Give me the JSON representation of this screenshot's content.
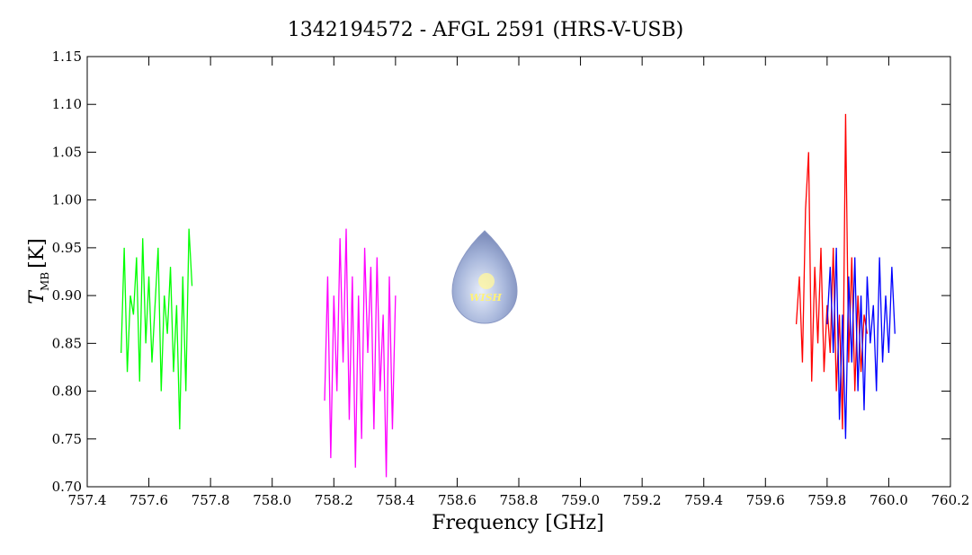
{
  "chart_data": {
    "type": "line",
    "title": "1342194572 - AFGL 2591 (HRS-V-USB)",
    "x_label": "Frequency [GHz]",
    "y_label": {
      "symbol": "T",
      "subscript": "MB",
      "unit": "[K]"
    },
    "logo": "WISH",
    "xlim": [
      757.4,
      760.2
    ],
    "ylim": [
      0.7,
      1.15
    ],
    "xticks": [
      757.4,
      757.6,
      757.8,
      {
        "value": 758.0,
        "label": "758.0"
      },
      758.2,
      758.4,
      758.6,
      758.8,
      {
        "value": 759.0,
        "label": "759.0"
      },
      759.2,
      759.4,
      759.6,
      759.8,
      {
        "value": 760.0,
        "label": "760.0"
      },
      760.2
    ],
    "yticks": [
      {
        "value": 0.7,
        "label": "0.70"
      },
      0.75,
      {
        "value": 0.8,
        "label": "0.80"
      },
      0.85,
      {
        "value": 0.9,
        "label": "0.90"
      },
      0.95,
      {
        "value": 1.0,
        "label": "1.00"
      },
      1.05,
      {
        "value": 1.1,
        "label": "1.10"
      },
      1.15
    ],
    "series": [
      {
        "color": "#00ff00",
        "x": [
          757.51,
          757.52,
          757.53,
          757.54,
          757.55,
          757.56,
          757.57,
          757.58,
          757.59,
          757.6,
          757.61,
          757.62,
          757.63,
          757.64,
          757.65,
          757.66,
          757.67,
          757.68,
          757.69,
          757.7,
          757.71,
          757.72,
          757.73,
          757.74
        ],
        "values": [
          0.84,
          0.95,
          0.82,
          0.9,
          0.88,
          0.94,
          0.81,
          0.96,
          0.85,
          0.92,
          0.83,
          0.89,
          0.95,
          0.8,
          0.9,
          0.86,
          0.93,
          0.82,
          0.89,
          0.76,
          0.92,
          0.8,
          0.97,
          0.91
        ]
      },
      {
        "color": "#ff00ff",
        "x": [
          758.17,
          758.18,
          758.19,
          758.2,
          758.21,
          758.22,
          758.23,
          758.24,
          758.25,
          758.26,
          758.27,
          758.28,
          758.29,
          758.3,
          758.31,
          758.32,
          758.33,
          758.34,
          758.35,
          758.36,
          758.37,
          758.38,
          758.39,
          758.4
        ],
        "values": [
          0.79,
          0.92,
          0.73,
          0.9,
          0.8,
          0.96,
          0.83,
          0.97,
          0.77,
          0.92,
          0.72,
          0.9,
          0.75,
          0.95,
          0.84,
          0.93,
          0.76,
          0.94,
          0.8,
          0.88,
          0.71,
          0.92,
          0.76,
          0.9
        ]
      },
      {
        "color": "#ff0000",
        "x": [
          759.7,
          759.71,
          759.72,
          759.73,
          759.74,
          759.75,
          759.76,
          759.77,
          759.78,
          759.79,
          759.8,
          759.81,
          759.82,
          759.83,
          759.84,
          759.85,
          759.86,
          759.87,
          759.88,
          759.89,
          759.9,
          759.91,
          759.92,
          759.93
        ],
        "values": [
          0.87,
          0.92,
          0.83,
          0.99,
          1.05,
          0.81,
          0.93,
          0.85,
          0.95,
          0.82,
          0.89,
          0.84,
          0.95,
          0.8,
          0.88,
          0.76,
          1.09,
          0.83,
          0.94,
          0.8,
          0.9,
          0.82,
          0.88,
          0.86
        ]
      },
      {
        "color": "#0000ff",
        "x": [
          759.8,
          759.81,
          759.82,
          759.83,
          759.84,
          759.85,
          759.86,
          759.87,
          759.88,
          759.89,
          759.9,
          759.91,
          759.92,
          759.93,
          759.94,
          759.95,
          759.96,
          759.97,
          759.98,
          759.99,
          760.0,
          760.01,
          760.02
        ],
        "values": [
          0.87,
          0.93,
          0.84,
          0.95,
          0.77,
          0.88,
          0.75,
          0.92,
          0.83,
          0.94,
          0.8,
          0.9,
          0.78,
          0.92,
          0.85,
          0.89,
          0.8,
          0.94,
          0.83,
          0.9,
          0.84,
          0.93,
          0.86
        ]
      }
    ]
  }
}
